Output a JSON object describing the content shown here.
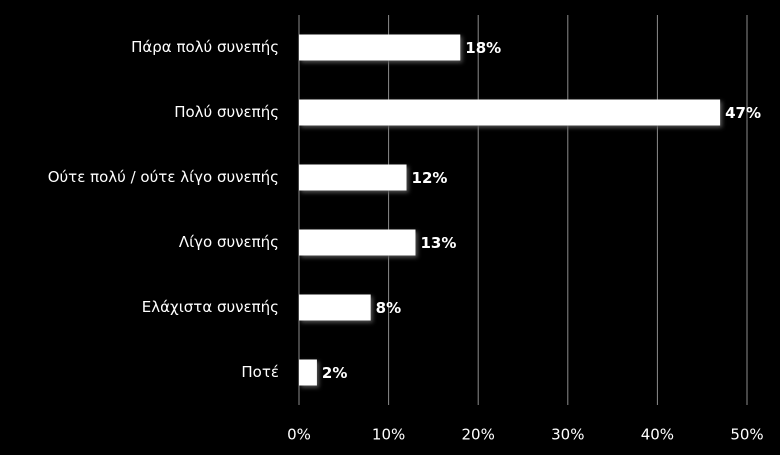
{
  "chart_data": {
    "type": "bar",
    "orientation": "horizontal",
    "categories": [
      "Πάρα πολύ συνεπής",
      "Πολύ συνεπής",
      "Ούτε πολύ / ούτε λίγο συνεπής",
      "Λίγο συνεπής",
      "Ελάχιστα συνεπής",
      "Ποτέ"
    ],
    "values": [
      18,
      47,
      12,
      13,
      8,
      2
    ],
    "value_labels": [
      "18%",
      "47%",
      "12%",
      "13%",
      "8%",
      "2%"
    ],
    "color": "#ffffff",
    "xlim": [
      0,
      50
    ],
    "xticks": [
      {
        "value": 0,
        "label": "0%"
      },
      {
        "value": 10,
        "label": "10%"
      },
      {
        "value": 20,
        "label": "20%"
      },
      {
        "value": 30,
        "label": "30%"
      },
      {
        "value": 40,
        "label": "40%"
      },
      {
        "value": 50,
        "label": "50%"
      }
    ],
    "grid": true
  }
}
